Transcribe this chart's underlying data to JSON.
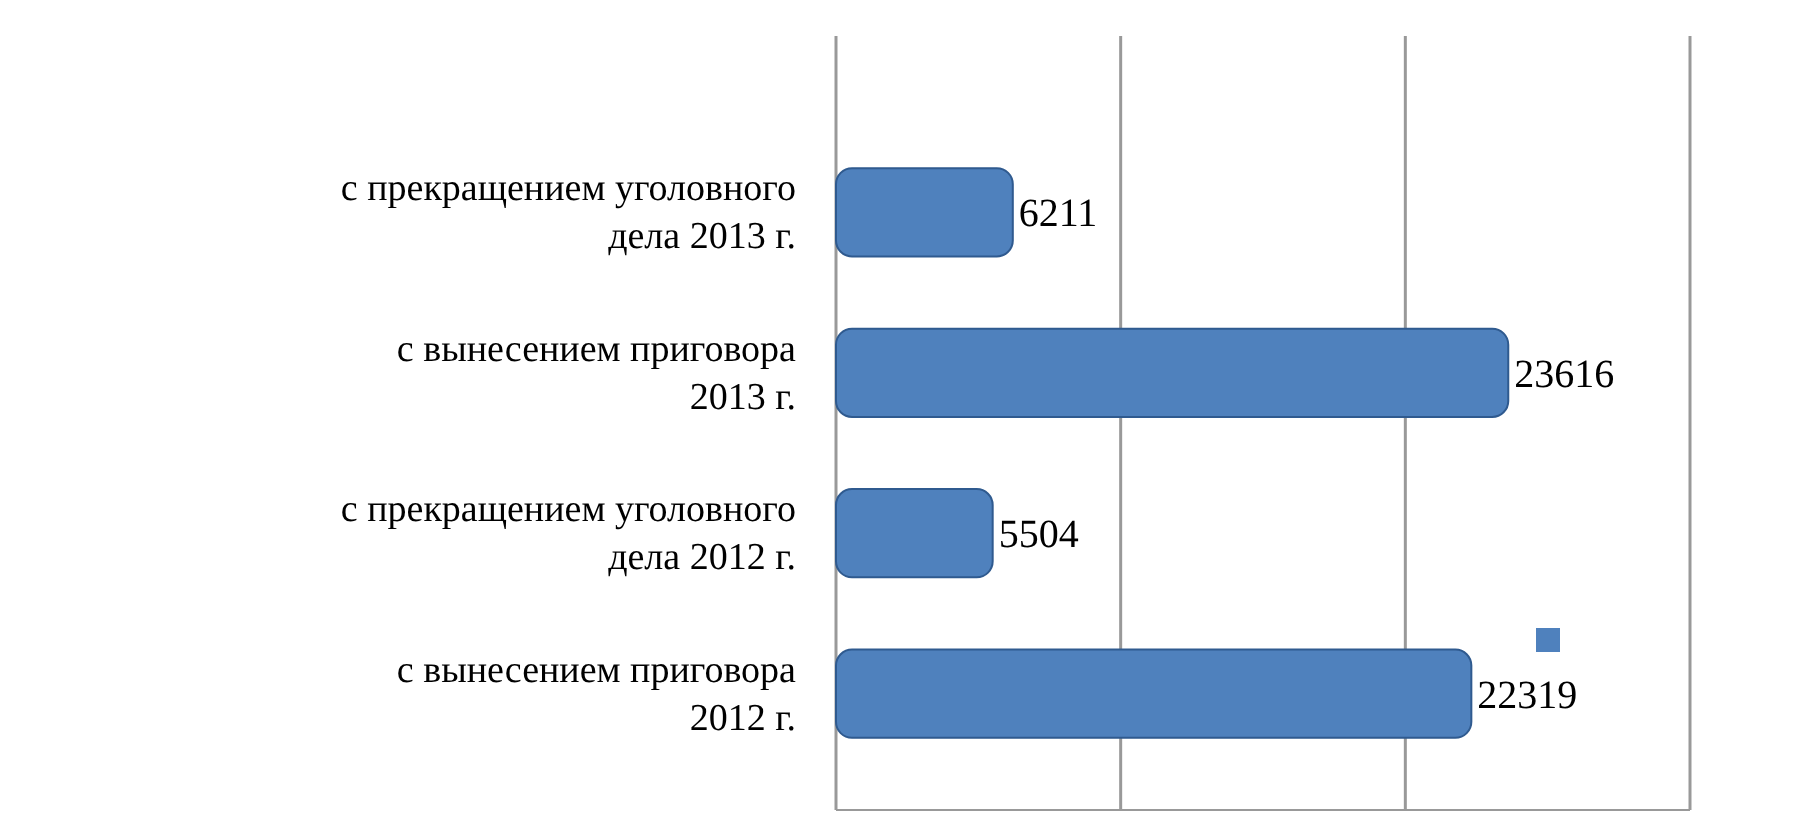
{
  "chart_data": {
    "type": "bar",
    "orientation": "horizontal",
    "categories": [
      "с прекращением уголовного дела 2013 г.",
      "с вынесением приговора 2013 г.",
      "с прекращением уголовного дела 2012 г.",
      "с вынесением приговора 2012 г."
    ],
    "values": [
      6211,
      23616,
      5504,
      22319
    ],
    "color": "#4f81bd",
    "data_labels": true,
    "xlim": [
      0,
      30000
    ],
    "xticks": [
      {
        "value": 0,
        "label": null
      },
      {
        "value": 10000,
        "label": null
      },
      {
        "value": 20000,
        "label": null
      },
      {
        "value": 30000,
        "label": null
      }
    ],
    "grid": "x"
  }
}
